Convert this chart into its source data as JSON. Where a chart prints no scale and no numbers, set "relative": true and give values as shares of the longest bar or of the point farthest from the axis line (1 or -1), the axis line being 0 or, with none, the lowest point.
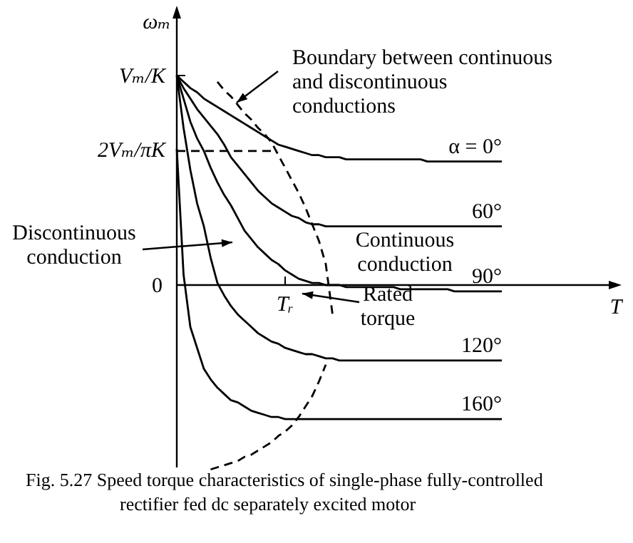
{
  "chart_data": {
    "type": "line",
    "xlabel": "T",
    "ylabel": "ωₘ",
    "relative": true,
    "marker": "none",
    "categories": [
      null,
      null,
      null,
      null,
      null,
      null,
      null,
      null,
      null,
      null,
      null,
      null,
      null,
      null,
      null,
      null,
      null,
      null,
      null,
      null,
      null,
      null,
      null,
      null,
      null,
      null,
      null,
      null,
      null,
      null,
      null,
      null,
      null,
      null,
      null,
      null,
      null,
      null,
      null,
      null,
      null,
      null,
      null,
      null,
      null,
      null,
      null,
      null,
      null
    ],
    "series": [
      {
        "name": "α = 0°",
        "color": "#000000",
        "values": [
          1,
          0.97,
          0.94,
          0.92,
          0.89,
          0.87,
          0.85,
          0.83,
          0.81,
          0.79,
          0.77,
          0.75,
          0.73,
          0.71,
          0.69,
          0.67,
          0.66,
          0.65,
          0.64,
          0.63,
          0.62,
          0.62,
          0.61,
          0.61,
          0.61,
          0.6,
          0.6,
          0.6,
          0.6,
          0.6,
          0.6,
          0.6,
          0.6,
          0.6,
          0.6,
          0.6,
          0.6,
          0.59,
          0.59,
          0.59,
          0.59,
          0.59,
          0.59,
          0.59,
          0.59,
          0.59,
          0.59,
          0.59,
          0.59
        ]
      },
      {
        "name": "60°",
        "color": "#000000",
        "values": [
          1,
          0.94,
          0.89,
          0.84,
          0.8,
          0.76,
          0.72,
          0.67,
          0.61,
          0.57,
          0.53,
          0.49,
          0.45,
          0.42,
          0.39,
          0.37,
          0.35,
          0.33,
          0.32,
          0.3,
          0.29,
          0.29,
          0.28,
          0.28,
          0.28,
          0.28,
          0.28,
          0.28,
          0.28,
          0.28,
          0.28,
          0.28,
          0.28,
          0.28,
          0.28,
          0.28,
          0.28,
          0.28,
          0.28,
          0.28,
          0.28,
          0.28,
          0.28,
          0.28,
          0.28,
          0.28,
          0.28,
          0.28,
          0.28
        ]
      },
      {
        "name": "90°",
        "color": "#000000",
        "values": [
          1,
          0.89,
          0.78,
          0.7,
          0.64,
          0.56,
          0.49,
          0.43,
          0.38,
          0.32,
          0.26,
          0.22,
          0.18,
          0.15,
          0.12,
          0.1,
          0.07,
          0.05,
          0.03,
          0.02,
          0.01,
          0.01,
          0,
          0,
          0,
          -0.01,
          -0.01,
          -0.01,
          -0.01,
          -0.01,
          -0.01,
          -0.01,
          -0.01,
          -0.02,
          -0.02,
          -0.02,
          -0.02,
          -0.02,
          -0.02,
          -0.02,
          -0.02,
          -0.03,
          -0.03,
          -0.03,
          -0.03,
          -0.03,
          -0.03,
          -0.03,
          -0.03
        ]
      },
      {
        "name": "120°",
        "color": "#000000",
        "values": [
          1,
          0.75,
          0.55,
          0.39,
          0.28,
          0.13,
          0.01,
          -0.05,
          -0.1,
          -0.14,
          -0.17,
          -0.2,
          -0.23,
          -0.25,
          -0.27,
          -0.28,
          -0.3,
          -0.31,
          -0.32,
          -0.33,
          -0.33,
          -0.34,
          -0.35,
          -0.35,
          -0.36,
          -0.36,
          -0.36,
          -0.36,
          -0.36,
          -0.36,
          -0.36,
          -0.36,
          -0.36,
          -0.36,
          -0.36,
          -0.36,
          -0.36,
          -0.36,
          -0.36,
          -0.36,
          -0.36,
          -0.36,
          -0.36,
          -0.36,
          -0.36,
          -0.36,
          -0.36,
          -0.36,
          -0.36
        ]
      },
      {
        "name": "160°",
        "color": "#000000",
        "values": [
          0.65,
          0.05,
          -0.2,
          -0.3,
          -0.4,
          -0.45,
          -0.49,
          -0.52,
          -0.55,
          -0.56,
          -0.58,
          -0.6,
          -0.61,
          -0.62,
          -0.63,
          -0.63,
          -0.64,
          -0.64,
          -0.64,
          -0.64,
          -0.64,
          -0.64,
          -0.64,
          -0.64,
          -0.64,
          -0.64,
          -0.64,
          -0.64,
          -0.64,
          -0.64,
          -0.64,
          -0.64,
          -0.64,
          -0.64,
          -0.64,
          -0.64,
          -0.64,
          -0.64,
          -0.64,
          -0.64,
          -0.64,
          -0.64,
          -0.64,
          -0.64,
          -0.64,
          -0.64,
          -0.64,
          -0.64,
          -0.64
        ]
      },
      {
        "color": "#000000",
        "line_style": "dashed",
        "values": [
          null,
          null,
          null,
          null,
          null,
          null,
          0.97,
          0.93,
          0.9,
          0.86,
          0.82,
          0.79,
          0.75,
          0.72,
          0.68,
          0.62,
          0.56,
          0.5,
          0.44,
          0.37,
          0.29,
          0.21,
          0.1,
          -0.14,
          null,
          null,
          null,
          null,
          null,
          null,
          null,
          null,
          null,
          null,
          null,
          null,
          null,
          null,
          null,
          null,
          null,
          null,
          null,
          null,
          null,
          null,
          null,
          null,
          null
        ]
      },
      {
        "color": "#000000",
        "line_style": "dashed",
        "values": [
          null,
          null,
          null,
          null,
          null,
          -0.88,
          -0.87,
          -0.86,
          -0.85,
          -0.84,
          -0.82,
          -0.81,
          -0.79,
          -0.77,
          -0.75,
          -0.72,
          -0.7,
          -0.67,
          -0.63,
          -0.58,
          -0.53,
          -0.46,
          -0.38,
          null,
          null,
          null,
          null,
          null,
          null,
          null,
          null,
          null,
          null,
          null,
          null,
          null,
          null,
          null,
          null,
          null,
          null,
          null,
          null,
          null,
          null,
          null,
          null,
          null,
          null
        ]
      },
      {
        "color": "#000000",
        "line_style": "dashed",
        "values": [
          0.64,
          0.64,
          0.64,
          0.64,
          0.64,
          0.64,
          0.64,
          0.64,
          0.64,
          0.64,
          0.64,
          0.64,
          0.64,
          0.64,
          0.64,
          null,
          null,
          null,
          null,
          null,
          null,
          null,
          null,
          null,
          null,
          null,
          null,
          null,
          null,
          null,
          null,
          null,
          null,
          null,
          null,
          null,
          null,
          null,
          null,
          null,
          null,
          null,
          null,
          null,
          null,
          null,
          null,
          null,
          null
        ]
      }
    ],
    "annotations": [
      "Boundary between continuous and discontinuous conductions",
      "Discontinuous conduction",
      "Continuous conduction",
      "Rated torque",
      "Fig. 5.27 Speed torque characteristics of single-phase fully-controlled rectifier fed dc separately excited motor",
      "Vₘ/K",
      "2Vₘ/πK",
      "0",
      "Tᵣ"
    ]
  }
}
